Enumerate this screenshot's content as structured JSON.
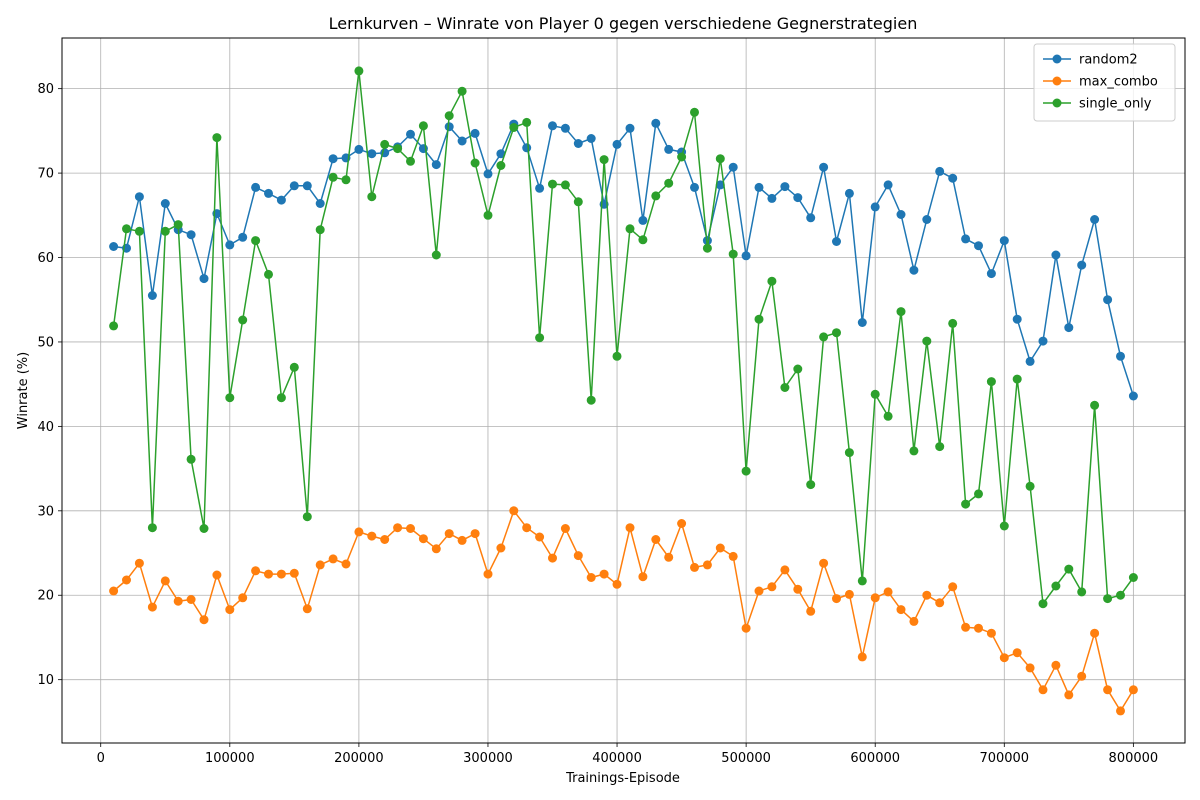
{
  "chart_data": {
    "type": "line",
    "title": "Lernkurven – Winrate von Player 0 gegen verschiedene Gegnerstrategien",
    "xlabel": "Trainings-Episode",
    "ylabel": "Winrate (%)",
    "xlim": [
      -30000,
      840000
    ],
    "ylim": [
      2.5,
      86
    ],
    "xticks": [
      0,
      100000,
      200000,
      300000,
      400000,
      500000,
      600000,
      700000,
      800000
    ],
    "xtick_labels": [
      "0",
      "100000",
      "200000",
      "300000",
      "400000",
      "500000",
      "600000",
      "700000",
      "800000"
    ],
    "yticks": [
      10,
      20,
      30,
      40,
      50,
      60,
      70,
      80
    ],
    "ytick_labels": [
      "10",
      "20",
      "30",
      "40",
      "50",
      "60",
      "70",
      "80"
    ],
    "grid": true,
    "legend_position": "top-right",
    "x": [
      10000,
      20000,
      30000,
      40000,
      50000,
      60000,
      70000,
      80000,
      90000,
      100000,
      110000,
      120000,
      130000,
      140000,
      150000,
      160000,
      170000,
      180000,
      190000,
      200000,
      210000,
      220000,
      230000,
      240000,
      250000,
      260000,
      270000,
      280000,
      290000,
      300000,
      310000,
      320000,
      330000,
      340000,
      350000,
      360000,
      370000,
      380000,
      390000,
      400000,
      410000,
      420000,
      430000,
      440000,
      450000,
      460000,
      470000,
      480000,
      490000,
      500000,
      510000,
      520000,
      530000,
      540000,
      550000,
      560000,
      570000,
      580000,
      590000,
      600000,
      610000,
      620000,
      630000,
      640000,
      650000,
      660000,
      670000,
      680000,
      690000,
      700000,
      710000,
      720000,
      730000,
      740000,
      750000,
      760000,
      770000,
      780000,
      790000,
      800000
    ],
    "series": [
      {
        "name": "random2",
        "color": "#1f77b4",
        "values": [
          61.3,
          61.1,
          67.2,
          55.5,
          66.4,
          63.3,
          62.7,
          57.5,
          65.2,
          61.5,
          62.4,
          68.3,
          67.6,
          66.8,
          68.5,
          68.5,
          66.4,
          71.7,
          71.8,
          72.8,
          72.3,
          72.4,
          73.1,
          74.6,
          72.9,
          71.0,
          75.5,
          73.8,
          74.7,
          69.9,
          72.3,
          75.8,
          73.0,
          68.2,
          75.6,
          75.3,
          73.5,
          74.1,
          66.3,
          73.4,
          75.3,
          64.4,
          75.9,
          72.8,
          72.5,
          68.3,
          62.0,
          68.6,
          70.7,
          60.2,
          68.3,
          67.0,
          68.4,
          67.1,
          64.7,
          70.7,
          61.9,
          67.6,
          52.3,
          66.0,
          68.6,
          65.1,
          58.5,
          64.5,
          70.2,
          69.4,
          62.2,
          61.4,
          58.1,
          62.0,
          52.7,
          47.7,
          50.1,
          60.3,
          51.7,
          59.1,
          64.5,
          55.0,
          48.3,
          43.6
        ]
      },
      {
        "name": "max_combo",
        "color": "#ff7f0e",
        "values": [
          20.5,
          21.8,
          23.8,
          18.6,
          21.7,
          19.3,
          19.5,
          17.1,
          22.4,
          18.3,
          19.7,
          22.9,
          22.5,
          22.5,
          22.6,
          18.4,
          23.6,
          24.3,
          23.7,
          27.5,
          27.0,
          26.6,
          28.0,
          27.9,
          26.7,
          25.5,
          27.3,
          26.5,
          27.3,
          22.5,
          25.6,
          30.0,
          28.0,
          26.9,
          24.4,
          27.9,
          24.7,
          22.1,
          22.5,
          21.3,
          28.0,
          22.2,
          26.6,
          24.5,
          28.5,
          23.3,
          23.6,
          25.6,
          24.6,
          16.1,
          20.5,
          21.0,
          23.0,
          20.7,
          18.1,
          23.8,
          19.6,
          20.1,
          12.7,
          19.7,
          20.4,
          18.3,
          16.9,
          20.0,
          19.1,
          21.0,
          16.2,
          16.1,
          15.5,
          12.6,
          13.2,
          11.4,
          8.8,
          11.7,
          8.2,
          10.4,
          15.5,
          8.8,
          6.3,
          8.8
        ]
      },
      {
        "name": "single_only",
        "color": "#2ca02c",
        "values": [
          51.9,
          63.4,
          63.1,
          28.0,
          63.1,
          63.9,
          36.1,
          27.9,
          74.2,
          43.4,
          52.6,
          62.0,
          58.0,
          43.4,
          47.0,
          29.3,
          63.3,
          69.5,
          69.2,
          82.1,
          67.2,
          73.4,
          72.9,
          71.4,
          75.6,
          60.3,
          76.8,
          79.7,
          71.2,
          65.0,
          70.9,
          75.4,
          76.0,
          50.5,
          68.7,
          68.6,
          66.6,
          43.1,
          71.6,
          48.3,
          63.4,
          62.1,
          67.3,
          68.8,
          71.9,
          77.2,
          61.1,
          71.7,
          60.4,
          34.7,
          52.7,
          57.2,
          44.6,
          46.8,
          33.1,
          50.6,
          51.1,
          36.9,
          21.7,
          43.8,
          41.2,
          53.6,
          37.1,
          50.1,
          37.6,
          52.2,
          30.8,
          32.0,
          45.3,
          28.2,
          45.6,
          32.9,
          19.0,
          21.1,
          23.1,
          20.4,
          42.5,
          19.6,
          20.0,
          22.1
        ]
      }
    ]
  }
}
